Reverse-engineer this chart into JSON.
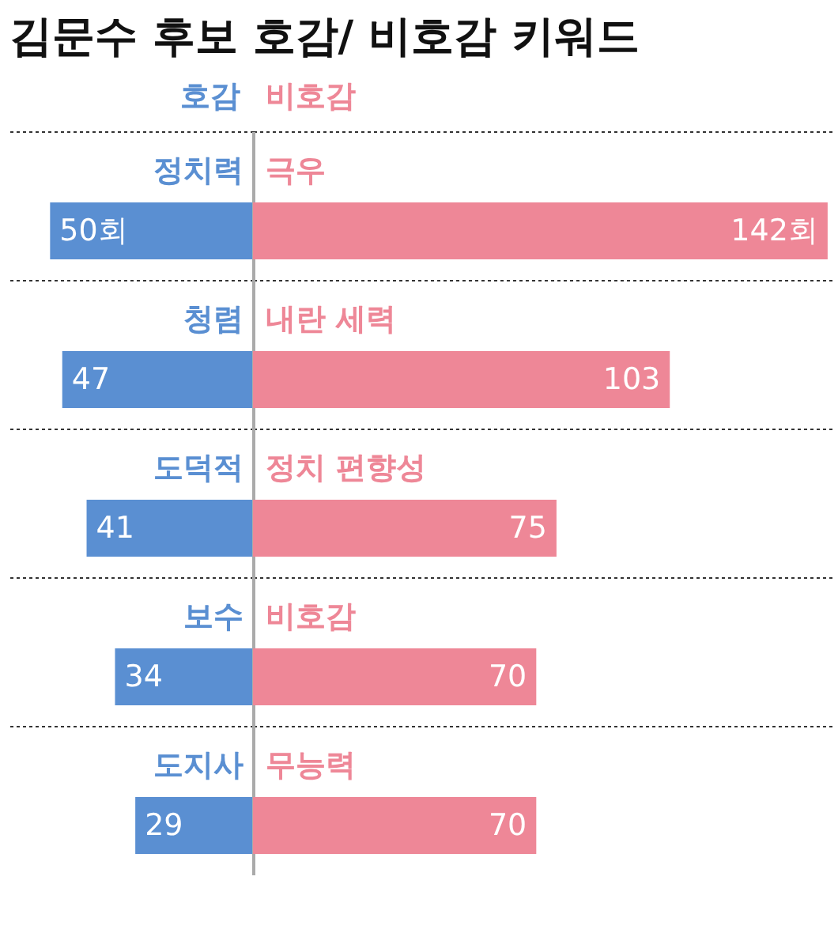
{
  "chart_data": [
    {
      "type": "bar",
      "orientation": "horizontal",
      "title": "김문수 후보 호감/ 비호감 키워드",
      "categories": [
        "정치력",
        "청렴",
        "도덕적",
        "보수",
        "도지사"
      ],
      "series": [
        {
          "name": "호감",
          "color": "#5a8fd2",
          "values": [
            50,
            47,
            41,
            34,
            29
          ],
          "value_labels": [
            "50회",
            "47",
            "41",
            "34",
            "29"
          ]
        }
      ],
      "xlim": [
        60,
        0
      ],
      "tick_labels": false,
      "grid": "y"
    },
    {
      "type": "bar",
      "orientation": "horizontal",
      "categories": [
        "극우",
        "내란 세력",
        "정치 편향성",
        "비호감",
        "무능력"
      ],
      "series": [
        {
          "name": "비호감",
          "color": "#ee8797",
          "values": [
            142,
            103,
            75,
            70,
            70
          ],
          "value_labels": [
            "142회",
            "103",
            "75",
            "70",
            "70"
          ]
        }
      ],
      "xlim": [
        0,
        143
      ],
      "tick_labels": false,
      "grid": "y"
    }
  ]
}
